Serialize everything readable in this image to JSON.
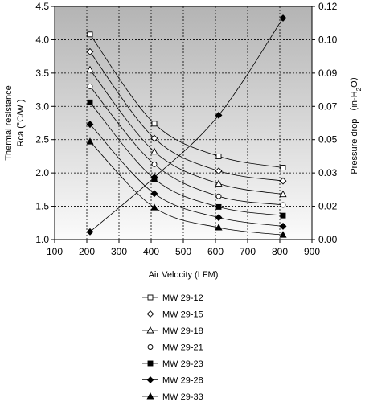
{
  "chart_data": {
    "type": "line",
    "title": "",
    "xlabel": "Air Velocity (LFM)",
    "ylabel_left": [
      "Thermal resistance",
      "Rca (°C/W )"
    ],
    "ylabel_right_parts": [
      "Pressure drop （in-H",
      "2",
      "O）"
    ],
    "xlim": [
      100,
      900
    ],
    "ylim_left": [
      1.0,
      4.5
    ],
    "ylim_right": [
      0.0,
      0.12
    ],
    "x_ticks": [
      "100",
      "200",
      "300",
      "400",
      "500",
      "600",
      "700",
      "800",
      "900"
    ],
    "y_left_ticks": [
      "1.0",
      "1.5",
      "2.0",
      "2.5",
      "3.0",
      "3.5",
      "4.0",
      "4.5"
    ],
    "y_right_ticks": [
      "0.00",
      "0.02",
      "0.03",
      "0.05",
      "0.07",
      "0.09",
      "0.10",
      "0.12"
    ],
    "grid": true,
    "legend_position": "bottom",
    "series": [
      {
        "name": "MW 29-12",
        "marker": "square-open",
        "axis": "left",
        "x": [
          210,
          410,
          610,
          810
        ],
        "y": [
          4.08,
          2.74,
          2.25,
          2.08
        ]
      },
      {
        "name": "MW 29-15",
        "marker": "diamond-open",
        "axis": "left",
        "x": [
          210,
          410,
          610,
          810
        ],
        "y": [
          3.82,
          2.52,
          2.03,
          1.88
        ]
      },
      {
        "name": "MW 29-18",
        "marker": "triangle-open",
        "axis": "left",
        "x": [
          210,
          410,
          610,
          810
        ],
        "y": [
          3.55,
          2.32,
          1.84,
          1.68
        ]
      },
      {
        "name": "MW 29-21",
        "marker": "circle-open",
        "axis": "left",
        "x": [
          210,
          410,
          610,
          810
        ],
        "y": [
          3.3,
          2.13,
          1.65,
          1.52
        ]
      },
      {
        "name": "MW 29-23",
        "marker": "square-filled",
        "axis": "left",
        "x": [
          210,
          410,
          610,
          810
        ],
        "y": [
          3.06,
          1.91,
          1.49,
          1.36
        ]
      },
      {
        "name": "MW 29-28",
        "marker": "diamond-filled",
        "axis": "left",
        "x": [
          210,
          410,
          610,
          810
        ],
        "y": [
          2.73,
          1.69,
          1.33,
          1.2
        ]
      },
      {
        "name": "MW 29-33",
        "marker": "triangle-filled",
        "axis": "left",
        "x": [
          210,
          410,
          610,
          810
        ],
        "y": [
          2.47,
          1.48,
          1.18,
          1.07
        ]
      },
      {
        "name": "",
        "marker": "diamond-filled",
        "axis": "right",
        "x": [
          210,
          410,
          610,
          810
        ],
        "y": [
          0.004,
          0.032,
          0.064,
          0.114
        ]
      }
    ]
  }
}
